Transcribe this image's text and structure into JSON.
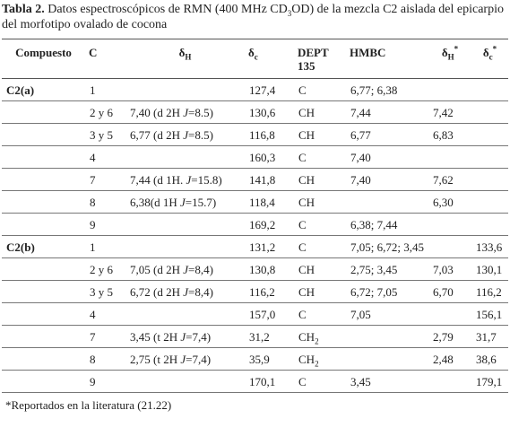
{
  "table": {
    "caption": [
      {
        "b": "Tabla 2."
      },
      {
        "t": " Datos espectroscópicos de RMN (400 MHz CD"
      },
      {
        "sub": "3"
      },
      {
        "t": "OD) de la mezcla C2 aislada del epicarpio del morfotipo ovalado de cocona"
      }
    ],
    "columns": [
      "Compuesto",
      "C",
      [
        {
          "t": "δ"
        },
        {
          "sub": "H"
        }
      ],
      [
        {
          "t": "δ"
        },
        {
          "sub": "c"
        }
      ],
      "DEPT 135",
      "HMBC",
      [
        {
          "t": "δ"
        },
        {
          "sub": "H"
        },
        {
          "sup": "*"
        }
      ],
      [
        {
          "t": "δ"
        },
        {
          "sub": "c"
        },
        {
          "sup": "*"
        }
      ]
    ],
    "groups": [
      {
        "compound": "C2(a)",
        "rows": [
          [
            "1",
            null,
            "127,4",
            "C",
            "6,77; 6,38",
            null,
            null
          ],
          [
            "2 y 6",
            [
              {
                "t": "7,40 (d 2H "
              },
              {
                "i": "J"
              },
              {
                "t": "=8.5)"
              }
            ],
            "130,6",
            "CH",
            "7,44",
            "7,42",
            null
          ],
          [
            "3 y 5",
            [
              {
                "t": "6,77 (d 2H "
              },
              {
                "i": "J"
              },
              {
                "t": "=8.5)"
              }
            ],
            "116,8",
            "CH",
            "6,77",
            "6,83",
            null
          ],
          [
            "4",
            null,
            "160,3",
            "C",
            "7,40",
            null,
            null
          ],
          [
            "7",
            [
              {
                "t": "7,44 (d 1H. "
              },
              {
                "i": "J"
              },
              {
                "t": "=15.8)"
              }
            ],
            "141,8",
            "CH",
            "7,40",
            "7,62",
            null
          ],
          [
            "8",
            [
              {
                "t": "6,38(d 1H "
              },
              {
                "i": "J"
              },
              {
                "t": "=15.7)"
              }
            ],
            "118,4",
            "CH",
            null,
            "6,30",
            null
          ],
          [
            "9",
            null,
            "169,2",
            "C",
            "6,38; 7,44",
            null,
            null
          ]
        ]
      },
      {
        "compound": "C2(b)",
        "rows": [
          [
            "1",
            null,
            "131,2",
            "C",
            "7,05; 6,72; 3,45",
            null,
            "133,6"
          ],
          [
            "2 y 6",
            [
              {
                "t": "7,05 (d 2H "
              },
              {
                "i": "J"
              },
              {
                "t": "=8,4)"
              }
            ],
            "130,8",
            "CH",
            "2,75; 3,45",
            "7,03",
            "130,1"
          ],
          [
            "3 y 5",
            [
              {
                "t": "6,72 (d 2H "
              },
              {
                "i": "J"
              },
              {
                "t": "=8,4)"
              }
            ],
            "116,2",
            "CH",
            "6,72; 7,05",
            "6,70",
            "116,2"
          ],
          [
            "4",
            null,
            "157,0",
            "C",
            "7,05",
            null,
            "156,1"
          ],
          [
            "7",
            [
              {
                "t": "3,45 (t 2H "
              },
              {
                "i": "J"
              },
              {
                "t": "=7,4)"
              }
            ],
            "31,2",
            [
              {
                "t": "CH"
              },
              {
                "sub": "2"
              }
            ],
            null,
            "2,79",
            "31,7"
          ],
          [
            "8",
            [
              {
                "t": "2,75 (t 2H "
              },
              {
                "i": "J"
              },
              {
                "t": "=7,4)"
              }
            ],
            "35,9",
            [
              {
                "t": "CH"
              },
              {
                "sub": "2"
              }
            ],
            null,
            "2,48",
            "38,6"
          ],
          [
            "9",
            null,
            "170,1",
            "C",
            "3,45",
            null,
            "179,1"
          ]
        ]
      }
    ],
    "footnote": "*Reportados en la literatura (21.22)"
  }
}
